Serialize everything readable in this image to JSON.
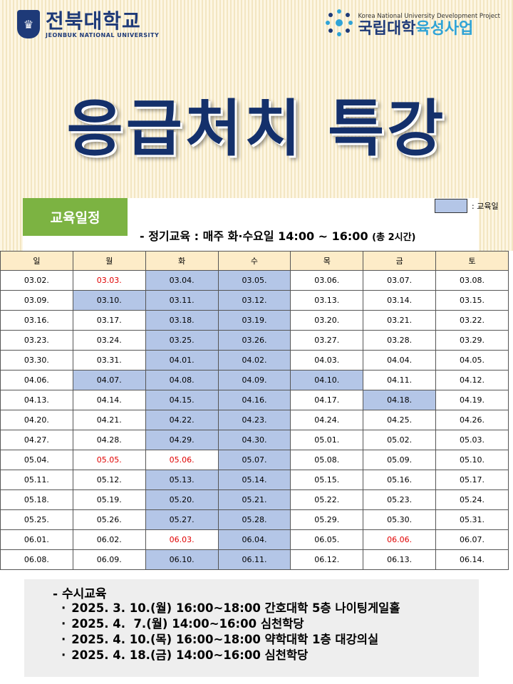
{
  "header": {
    "univ_name_kor": "전북대학교",
    "univ_name_eng": "JEONBUK NATIONAL UNIVERSITY",
    "project_eng": "Korea National University Development Project",
    "project_kor_a": "국립대학",
    "project_kor_b": "육성사업",
    "title": "응급처치 특강"
  },
  "schedule": {
    "tab_label": "교육일정",
    "legend_label": ": 교육일",
    "highlight_color": "#b4c6e7",
    "holiday_color": "#e00000",
    "regular_text": "- 정기교육 : 매주 화·수요일 14:00 ~ 16:00",
    "regular_note": "(총 2시간)"
  },
  "calendar": {
    "headers": [
      "일",
      "월",
      "화",
      "수",
      "목",
      "금",
      "토"
    ],
    "rows": [
      [
        {
          "d": "03.02."
        },
        {
          "d": "03.03.",
          "red": true
        },
        {
          "d": "03.04.",
          "hl": true
        },
        {
          "d": "03.05.",
          "hl": true
        },
        {
          "d": "03.06."
        },
        {
          "d": "03.07."
        },
        {
          "d": "03.08."
        }
      ],
      [
        {
          "d": "03.09."
        },
        {
          "d": "03.10.",
          "hl": true
        },
        {
          "d": "03.11.",
          "hl": true
        },
        {
          "d": "03.12.",
          "hl": true
        },
        {
          "d": "03.13."
        },
        {
          "d": "03.14."
        },
        {
          "d": "03.15."
        }
      ],
      [
        {
          "d": "03.16."
        },
        {
          "d": "03.17."
        },
        {
          "d": "03.18.",
          "hl": true
        },
        {
          "d": "03.19.",
          "hl": true
        },
        {
          "d": "03.20."
        },
        {
          "d": "03.21."
        },
        {
          "d": "03.22."
        }
      ],
      [
        {
          "d": "03.23."
        },
        {
          "d": "03.24."
        },
        {
          "d": "03.25.",
          "hl": true
        },
        {
          "d": "03.26.",
          "hl": true
        },
        {
          "d": "03.27."
        },
        {
          "d": "03.28."
        },
        {
          "d": "03.29."
        }
      ],
      [
        {
          "d": "03.30."
        },
        {
          "d": "03.31."
        },
        {
          "d": "04.01.",
          "hl": true
        },
        {
          "d": "04.02.",
          "hl": true
        },
        {
          "d": "04.03."
        },
        {
          "d": "04.04."
        },
        {
          "d": "04.05."
        }
      ],
      [
        {
          "d": "04.06."
        },
        {
          "d": "04.07.",
          "hl": true
        },
        {
          "d": "04.08.",
          "hl": true
        },
        {
          "d": "04.09.",
          "hl": true
        },
        {
          "d": "04.10.",
          "hl": true
        },
        {
          "d": "04.11."
        },
        {
          "d": "04.12."
        }
      ],
      [
        {
          "d": "04.13."
        },
        {
          "d": "04.14."
        },
        {
          "d": "04.15.",
          "hl": true
        },
        {
          "d": "04.16.",
          "hl": true
        },
        {
          "d": "04.17."
        },
        {
          "d": "04.18.",
          "hl": true
        },
        {
          "d": "04.19."
        }
      ],
      [
        {
          "d": "04.20."
        },
        {
          "d": "04.21."
        },
        {
          "d": "04.22.",
          "hl": true
        },
        {
          "d": "04.23.",
          "hl": true
        },
        {
          "d": "04.24."
        },
        {
          "d": "04.25."
        },
        {
          "d": "04.26."
        }
      ],
      [
        {
          "d": "04.27."
        },
        {
          "d": "04.28."
        },
        {
          "d": "04.29.",
          "hl": true
        },
        {
          "d": "04.30.",
          "hl": true
        },
        {
          "d": "05.01."
        },
        {
          "d": "05.02."
        },
        {
          "d": "05.03."
        }
      ],
      [
        {
          "d": "05.04."
        },
        {
          "d": "05.05.",
          "red": true
        },
        {
          "d": "05.06.",
          "red": true
        },
        {
          "d": "05.07.",
          "hl": true
        },
        {
          "d": "05.08."
        },
        {
          "d": "05.09."
        },
        {
          "d": "05.10."
        }
      ],
      [
        {
          "d": "05.11."
        },
        {
          "d": "05.12."
        },
        {
          "d": "05.13.",
          "hl": true
        },
        {
          "d": "05.14.",
          "hl": true
        },
        {
          "d": "05.15."
        },
        {
          "d": "05.16."
        },
        {
          "d": "05.17."
        }
      ],
      [
        {
          "d": "05.18."
        },
        {
          "d": "05.19."
        },
        {
          "d": "05.20.",
          "hl": true
        },
        {
          "d": "05.21.",
          "hl": true
        },
        {
          "d": "05.22."
        },
        {
          "d": "05.23."
        },
        {
          "d": "05.24."
        }
      ],
      [
        {
          "d": "05.25."
        },
        {
          "d": "05.26."
        },
        {
          "d": "05.27.",
          "hl": true
        },
        {
          "d": "05.28.",
          "hl": true
        },
        {
          "d": "05.29."
        },
        {
          "d": "05.30."
        },
        {
          "d": "05.31."
        }
      ],
      [
        {
          "d": "06.01."
        },
        {
          "d": "06.02."
        },
        {
          "d": "06.03.",
          "red": true
        },
        {
          "d": "06.04.",
          "hl": true
        },
        {
          "d": "06.05."
        },
        {
          "d": "06.06.",
          "red": true
        },
        {
          "d": "06.07."
        }
      ],
      [
        {
          "d": "06.08."
        },
        {
          "d": "06.09."
        },
        {
          "d": "06.10.",
          "hl": true
        },
        {
          "d": "06.11.",
          "hl": true
        },
        {
          "d": "06.12."
        },
        {
          "d": "06.13."
        },
        {
          "d": "06.14."
        }
      ]
    ]
  },
  "occasional": {
    "heading": "- 수시교육",
    "items": [
      "2025. 3. 10.(월) 16:00~18:00 간호대학 5층 나이팅게일홀",
      "2025. 4.  7.(월) 14:00~16:00 심천학당",
      "2025. 4. 10.(목) 16:00~18:00 약학대학 1층 대강의실",
      "2025. 4. 18.(금) 14:00~16:00 심천학당"
    ]
  }
}
